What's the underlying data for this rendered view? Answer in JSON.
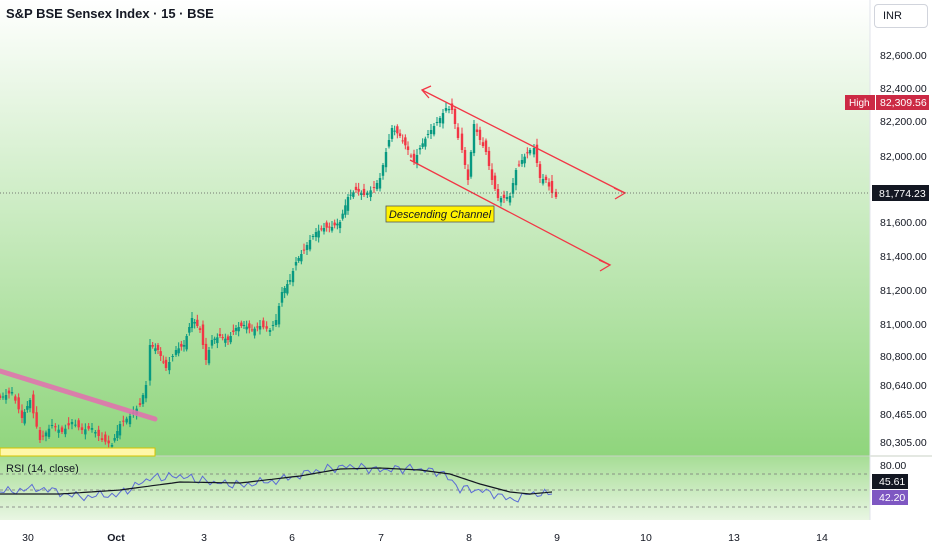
{
  "header": {
    "title": "S&P BSE Sensex Index · 15 · BSE",
    "currency": "INR"
  },
  "colors": {
    "up": "#089981",
    "down": "#f23645",
    "channel": "#f23645",
    "trendline": "#e46fb0",
    "rsi_line": "#5b6bd6",
    "rsi_ma": "#131722",
    "bg_top": "#ffffff",
    "bg_bottom": "#8fd57c",
    "annotation_bg": "#fff200"
  },
  "chart_data": {
    "type": "candlestick",
    "price_axis": {
      "ylim": [
        80200,
        82800
      ],
      "ticks": [
        "82,600.00",
        "82,400.00",
        "82,200.00",
        "82,000.00",
        "81,600.00",
        "81,400.00",
        "81,200.00",
        "81,000.00",
        "80,800.00",
        "80,640.00",
        "80,465.00",
        "80,305.00"
      ]
    },
    "current_price": "81,774.23",
    "high_label": "High",
    "high_value": "82,309.56",
    "time_axis": [
      "30",
      "Oct",
      "3",
      "6",
      "7",
      "8",
      "9",
      "10",
      "13",
      "14"
    ],
    "annotation": "Descending Channel",
    "rsi": {
      "label": "RSI (14, close)",
      "top_tick": "80.00",
      "value": "45.61",
      "ma_value": "42.20"
    }
  }
}
